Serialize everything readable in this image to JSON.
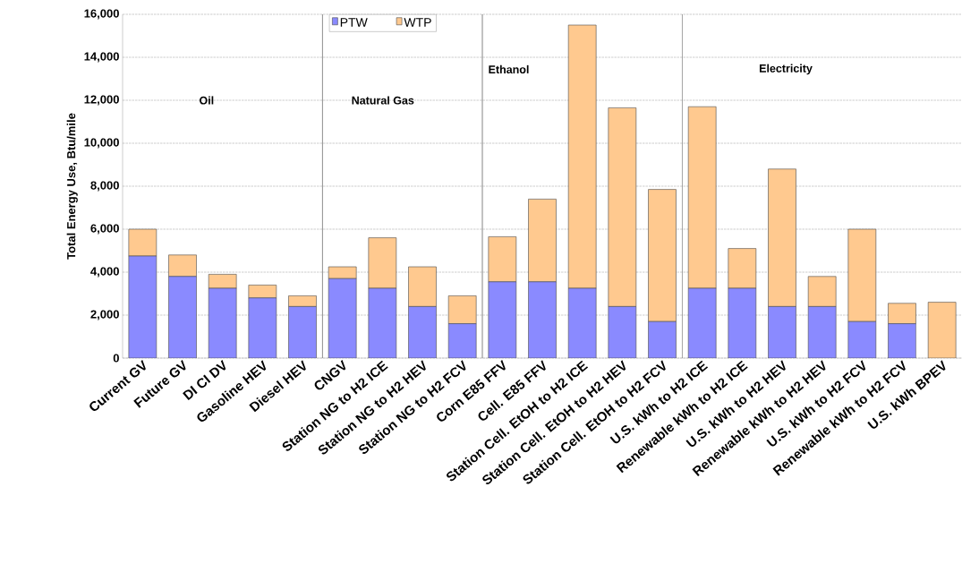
{
  "chart_data": {
    "type": "bar",
    "stacked": true,
    "ylabel": "Total Energy Use, Btu/mile",
    "categories": [
      "Current GV",
      "Future GV",
      "DI CI DV",
      "Gasoline HEV",
      "Diesel HEV",
      "CNGV",
      "Station NG to H2 ICE",
      "Station NG to H2 HEV",
      "Station NG to H2 FCV",
      "Corn E85 FFV",
      "Cell. E85 FFV",
      "Station Cell. EtOH to H2 ICE",
      "Station Cell. EtOH to H2 HEV",
      "Station Cell. EtOH to H2 FCV",
      "U.S. kWh to H2 ICE",
      "Renewable kWh to H2 ICE",
      "U.S. kWh to H2 HEV",
      "Renewable kWh to H2 HEV",
      "U.S. kWh to H2 FCV",
      "Renewable kWh to H2 FCV",
      "U.S. kWh BPEV"
    ],
    "series": [
      {
        "name": "PTW",
        "color": "#8a8aff",
        "values": [
          4750,
          3800,
          3250,
          2800,
          2400,
          3700,
          3250,
          2400,
          1600,
          3550,
          3550,
          3250,
          2400,
          1700,
          3250,
          3250,
          2400,
          2400,
          1700,
          1600,
          0
        ]
      },
      {
        "name": "WTP",
        "color": "#ffc98f",
        "values": [
          1250,
          1000,
          650,
          600,
          500,
          550,
          2350,
          1850,
          1300,
          2100,
          3850,
          12250,
          9250,
          6150,
          8450,
          1850,
          6400,
          1400,
          4300,
          950,
          2600
        ]
      }
    ],
    "ylim": [
      0,
      16000
    ],
    "yticks": [
      {
        "value": 0,
        "label": "0"
      },
      {
        "value": 2000,
        "label": "2,000"
      },
      {
        "value": 4000,
        "label": "4,000"
      },
      {
        "value": 6000,
        "label": "6,000"
      },
      {
        "value": 8000,
        "label": "8,000"
      },
      {
        "value": 10000,
        "label": "10,000"
      },
      {
        "value": 12000,
        "label": "12,000"
      },
      {
        "value": 14000,
        "label": "14,000"
      },
      {
        "value": 16000,
        "label": "16,000"
      }
    ],
    "grid": "y",
    "legend": "top",
    "annotations": [
      "Oil",
      "Natural Gas",
      "Ethanol",
      "Electricity"
    ]
  }
}
